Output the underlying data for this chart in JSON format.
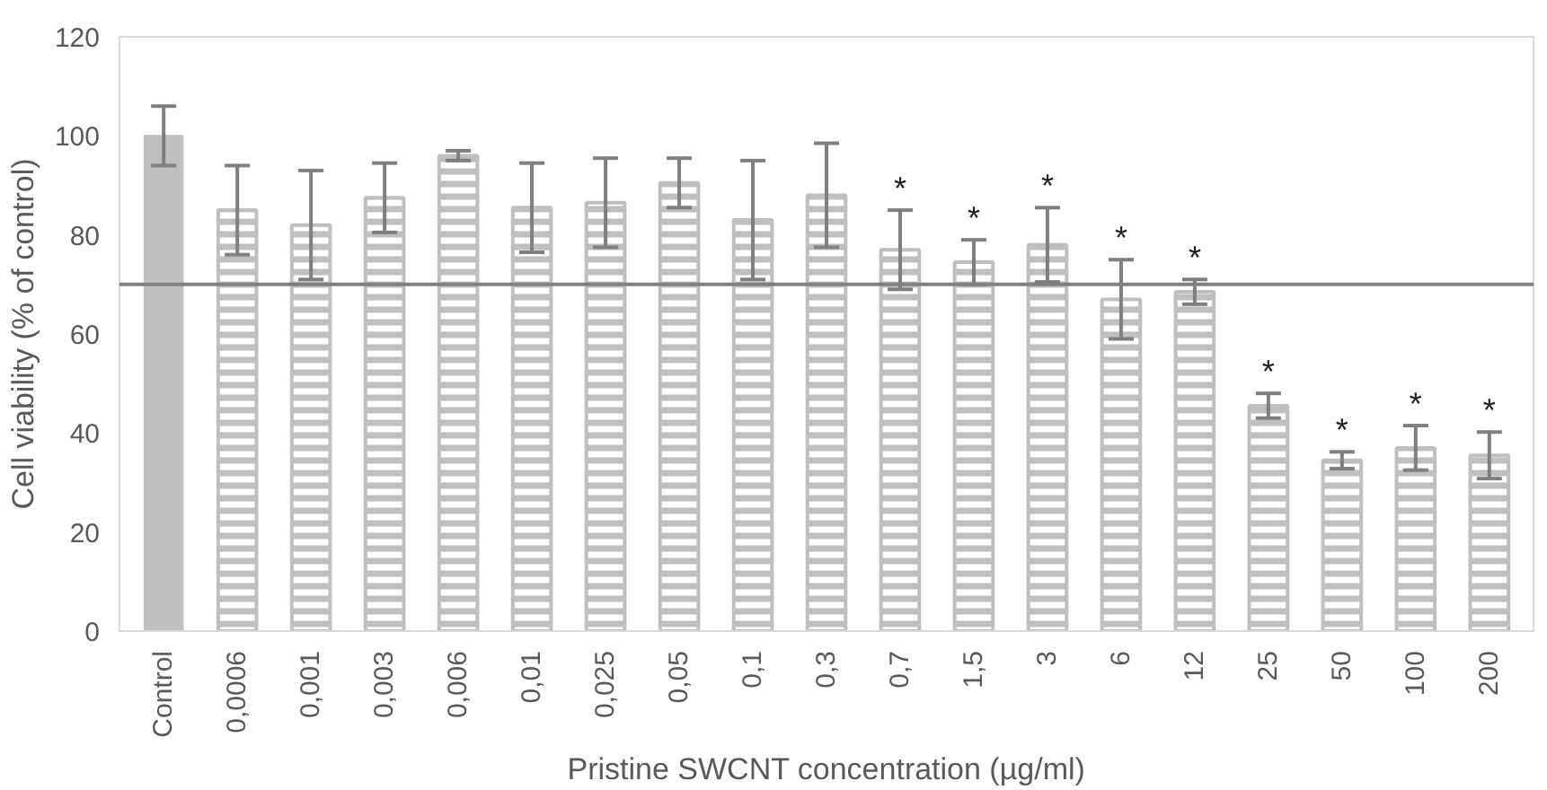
{
  "chart_data": {
    "type": "bar",
    "xlabel": "Pristine SWCNT concentration (µg/ml)",
    "ylabel": "Cell viability (% of control)",
    "categories": [
      "Control",
      "0,0006",
      "0,001",
      "0,003",
      "0,006",
      "0,01",
      "0,025",
      "0,05",
      "0,1",
      "0,3",
      "0,7",
      "1,5",
      "3",
      "6",
      "12",
      "25",
      "50",
      "100",
      "200"
    ],
    "values": [
      100,
      85,
      82,
      87.5,
      96,
      85.5,
      86.5,
      90.5,
      83,
      88,
      77,
      74.5,
      78,
      67,
      68.5,
      45.5,
      34.5,
      37,
      35.5
    ],
    "errors": [
      6,
      9,
      11,
      7,
      1,
      9,
      9,
      5,
      12,
      10.5,
      8,
      4.5,
      7.5,
      8,
      2.5,
      2.5,
      1.7,
      4.5,
      4.7
    ],
    "colors": [
      "#bfbfbf",
      "#bfbfbf",
      "#bfbfbf",
      "#bfbfbf",
      "#bfbfbf",
      "#bfbfbf",
      "#bfbfbf",
      "#bfbfbf",
      "#bfbfbf",
      "#bfbfbf",
      "#bfbfbf",
      "#bfbfbf",
      "#bfbfbf",
      "#bfbfbf",
      "#bfbfbf",
      "#bfbfbf",
      "#bfbfbf",
      "#bfbfbf",
      "#bfbfbf"
    ],
    "ylim": [
      0,
      120
    ],
    "yticks": [
      0,
      20,
      40,
      60,
      80,
      100,
      120
    ],
    "grid": false,
    "ref_lines": [
      {
        "axis": "y",
        "value": 70,
        "color": "#808080"
      }
    ],
    "annotations": [
      {
        "text": "*",
        "x": "0,7",
        "y": 77
      },
      {
        "text": "*",
        "x": "1,5",
        "y": 74.5
      },
      {
        "text": "*",
        "x": "3",
        "y": 78
      },
      {
        "text": "*",
        "x": "6",
        "y": 67
      },
      {
        "text": "*",
        "x": "12",
        "y": 68.5
      },
      {
        "text": "*",
        "x": "25",
        "y": 45.5
      },
      {
        "text": "*",
        "x": "50",
        "y": 34.5
      },
      {
        "text": "*",
        "x": "100",
        "y": 37
      },
      {
        "text": "*",
        "x": "200",
        "y": 35.5
      }
    ]
  }
}
